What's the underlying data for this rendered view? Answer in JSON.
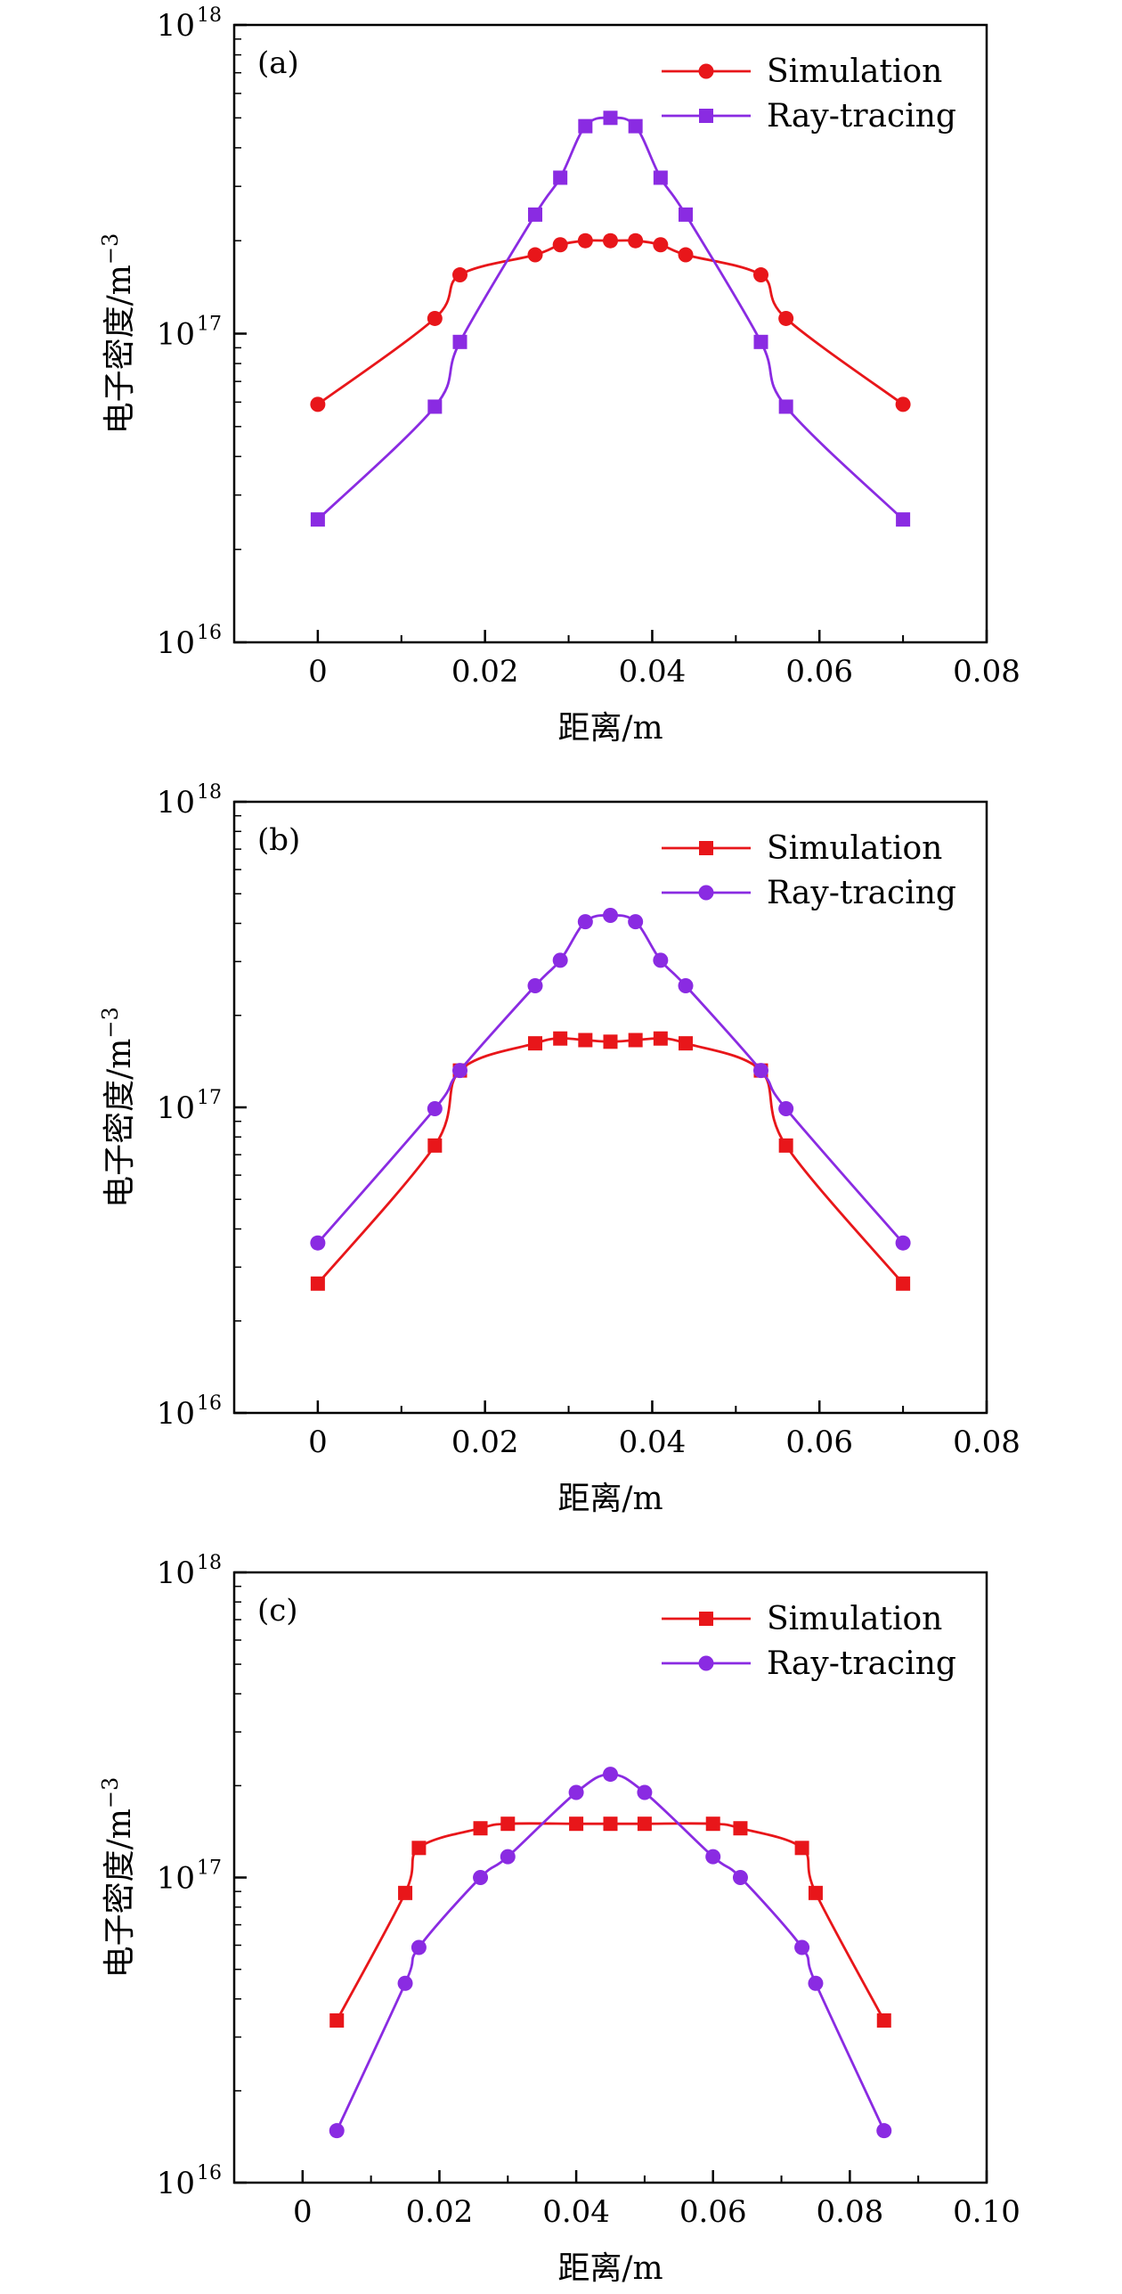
{
  "colors": {
    "red": "#e8161a",
    "purple": "#8a2be2",
    "axis": "#000000"
  },
  "chart_data": [
    {
      "type": "line",
      "panel": "(a)",
      "xlabel": "距离/m",
      "ylabel": "电子密度/m",
      "ylabel_sup": "−3",
      "yscale": "log",
      "xlim": [
        -0.01,
        0.08
      ],
      "ylim": [
        1e+16,
        1e+18
      ],
      "x_ticks": [
        0,
        0.02,
        0.04,
        0.06,
        0.08
      ],
      "x_tick_labels": [
        "0",
        "0.02",
        "0.04",
        "0.06",
        "0.08"
      ],
      "y_ticks": [
        1e+16,
        1e+17,
        1e+18
      ],
      "y_tick_bases": [
        "10",
        "10",
        "10"
      ],
      "y_tick_exps": [
        "16",
        "17",
        "18"
      ],
      "legend_position": "top-right",
      "series": [
        {
          "name": "Simulation",
          "color": "#e8161a",
          "marker": "circle",
          "x": [
            0,
            0.014,
            0.017,
            0.026,
            0.029,
            0.032,
            0.035,
            0.038,
            0.041,
            0.044,
            0.053,
            0.056,
            0.07
          ],
          "y": [
            5.9e+16,
            1.12e+17,
            1.55e+17,
            1.8e+17,
            1.94e+17,
            2e+17,
            2e+17,
            2e+17,
            1.94e+17,
            1.8e+17,
            1.55e+17,
            1.12e+17,
            5.9e+16
          ]
        },
        {
          "name": "Ray-tracing",
          "color": "#8a2be2",
          "marker": "square",
          "x": [
            0,
            0.014,
            0.017,
            0.026,
            0.029,
            0.032,
            0.035,
            0.038,
            0.041,
            0.044,
            0.053,
            0.056,
            0.07
          ],
          "y": [
            2.5e+16,
            5.8e+16,
            9.4e+16,
            2.43e+17,
            3.2e+17,
            4.7e+17,
            5e+17,
            4.7e+17,
            3.2e+17,
            2.43e+17,
            9.4e+16,
            5.8e+16,
            2.5e+16
          ]
        }
      ]
    },
    {
      "type": "line",
      "panel": "(b)",
      "xlabel": "距离/m",
      "ylabel": "电子密度/m",
      "ylabel_sup": "−3",
      "yscale": "log",
      "xlim": [
        -0.01,
        0.08
      ],
      "ylim": [
        1e+16,
        1e+18
      ],
      "x_ticks": [
        0,
        0.02,
        0.04,
        0.06,
        0.08
      ],
      "x_tick_labels": [
        "0",
        "0.02",
        "0.04",
        "0.06",
        "0.08"
      ],
      "y_ticks": [
        1e+16,
        1e+17,
        1e+18
      ],
      "y_tick_bases": [
        "10",
        "10",
        "10"
      ],
      "y_tick_exps": [
        "16",
        "17",
        "18"
      ],
      "legend_position": "top-right",
      "series": [
        {
          "name": "Simulation",
          "color": "#e8161a",
          "marker": "square",
          "x": [
            0,
            0.014,
            0.017,
            0.026,
            0.029,
            0.032,
            0.035,
            0.038,
            0.041,
            0.044,
            0.053,
            0.056,
            0.07
          ],
          "y": [
            2.65e+16,
            7.5e+16,
            1.32e+17,
            1.62e+17,
            1.68e+17,
            1.66e+17,
            1.64e+17,
            1.66e+17,
            1.68e+17,
            1.62e+17,
            1.32e+17,
            7.5e+16,
            2.65e+16
          ]
        },
        {
          "name": "Ray-tracing",
          "color": "#8a2be2",
          "marker": "circle",
          "x": [
            0,
            0.014,
            0.017,
            0.026,
            0.029,
            0.032,
            0.035,
            0.038,
            0.041,
            0.044,
            0.053,
            0.056,
            0.07
          ],
          "y": [
            3.6e+16,
            9.9e+16,
            1.32e+17,
            2.5e+17,
            3.03e+17,
            4.05e+17,
            4.25e+17,
            4.05e+17,
            3.03e+17,
            2.5e+17,
            1.32e+17,
            9.9e+16,
            3.6e+16
          ]
        }
      ]
    },
    {
      "type": "line",
      "panel": "(c)",
      "xlabel": "距离/m",
      "ylabel": "电子密度/m",
      "ylabel_sup": "−3",
      "yscale": "log",
      "xlim": [
        -0.01,
        0.1
      ],
      "ylim": [
        1e+16,
        1e+18
      ],
      "x_ticks": [
        0,
        0.02,
        0.04,
        0.06,
        0.08,
        0.1
      ],
      "x_tick_labels": [
        "0",
        "0.02",
        "0.04",
        "0.06",
        "0.08",
        "0.10"
      ],
      "y_ticks": [
        1e+16,
        1e+17,
        1e+18
      ],
      "y_tick_bases": [
        "10",
        "10",
        "10"
      ],
      "y_tick_exps": [
        "16",
        "17",
        "18"
      ],
      "legend_position": "top-right",
      "series": [
        {
          "name": "Simulation",
          "color": "#e8161a",
          "marker": "square",
          "x": [
            0.005,
            0.015,
            0.017,
            0.026,
            0.03,
            0.04,
            0.045,
            0.05,
            0.06,
            0.064,
            0.073,
            0.075,
            0.085
          ],
          "y": [
            3.4e+16,
            8.9e+16,
            1.25e+17,
            1.45e+17,
            1.5e+17,
            1.5e+17,
            1.5e+17,
            1.5e+17,
            1.5e+17,
            1.45e+17,
            1.25e+17,
            8.9e+16,
            3.4e+16
          ]
        },
        {
          "name": "Ray-tracing",
          "color": "#8a2be2",
          "marker": "circle",
          "x": [
            0.005,
            0.015,
            0.017,
            0.026,
            0.03,
            0.04,
            0.045,
            0.05,
            0.06,
            0.064,
            0.073,
            0.075,
            0.085
          ],
          "y": [
            1.48e+16,
            4.5e+16,
            5.9e+16,
            1e+17,
            1.17e+17,
            1.9e+17,
            2.18e+17,
            1.9e+17,
            1.17e+17,
            1e+17,
            5.9e+16,
            4.5e+16,
            1.48e+16
          ]
        }
      ]
    }
  ]
}
